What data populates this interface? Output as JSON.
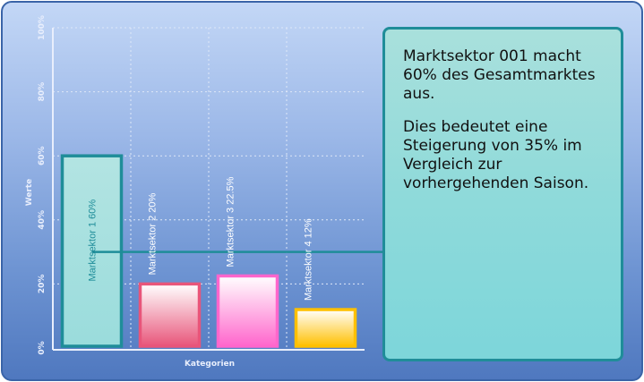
{
  "chart_data": {
    "type": "bar",
    "categories": [
      "Marktsektor 1",
      "Marktsektor 2",
      "Marktsektor 3",
      "Marktsektor 4"
    ],
    "values": [
      60,
      20,
      22.5,
      12
    ],
    "data_labels": [
      "Marktsektor 1 60%",
      "Marktsektor 2 20%",
      "Marktsektor 3 22.5%",
      "Marktsektor 4 12%"
    ],
    "xlabel": "Kategorien",
    "ylabel": "Werte",
    "ylim": [
      0,
      100
    ],
    "yticks": [
      "0%",
      "20%",
      "40%",
      "60%",
      "80%",
      "100%"
    ],
    "grid": true,
    "colors": {
      "bar1_fill": "#a6e0e0",
      "bar1_stroke": "#1f8d99",
      "bar1_label": "#1f8d99",
      "bar2_top": "#ffffff",
      "bar2_bottom": "#e8557a",
      "bar2_stroke": "#e8557a",
      "bar3_top": "#ffffff",
      "bar3_bottom": "#ff66cc",
      "bar3_stroke": "#ff66cc",
      "bar4_top": "#ffffff",
      "bar4_bottom": "#ffc000",
      "bar4_stroke": "#ffc000",
      "other_labels": "#ffffff"
    },
    "reference_line": {
      "value": 30,
      "color": "#1f8d99"
    }
  },
  "callout": {
    "text1": "Marktsektor 001 macht 60% des Gesamtmarktes aus.",
    "text2": "Dies bedeutet eine Steigerung von 35% im Vergleich zur vorhergehenden Saison."
  }
}
